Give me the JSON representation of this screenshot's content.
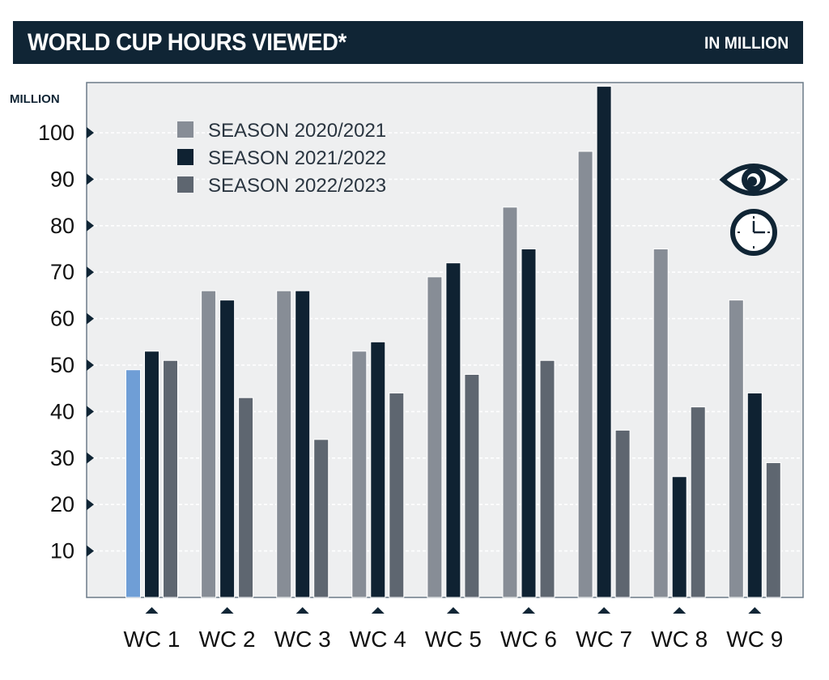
{
  "header": {
    "title": "WORLD CUP HOURS VIEWED*",
    "unit_label": "IN MILLION"
  },
  "chart_data": {
    "type": "bar",
    "title": "WORLD CUP HOURS VIEWED*",
    "ylabel": "MILLION",
    "xlabel": "",
    "ylim": [
      0,
      110
    ],
    "yticks": [
      10,
      20,
      30,
      40,
      50,
      60,
      70,
      80,
      90,
      100
    ],
    "grid": true,
    "legend_position": "top-left",
    "categories": [
      "WC 1",
      "WC 2",
      "WC 3",
      "WC 4",
      "WC 5",
      "WC 6",
      "WC 7",
      "WC 8",
      "WC 9"
    ],
    "series": [
      {
        "name": "SEASON 2020/2021",
        "color": "#878d96",
        "values": [
          49,
          66,
          66,
          53,
          69,
          84,
          96,
          75,
          64
        ]
      },
      {
        "name": "SEASON 2021/2022",
        "color": "#0f2232",
        "values": [
          53,
          64,
          66,
          55,
          72,
          75,
          110,
          26,
          44
        ]
      },
      {
        "name": "SEASON 2022/2023",
        "color": "#5e6670",
        "values": [
          51,
          43,
          34,
          44,
          48,
          51,
          36,
          41,
          29
        ]
      }
    ],
    "highlight": {
      "category_index": 0,
      "series_index": 0,
      "color": "#6f9ed6"
    },
    "icons": [
      "eye-icon",
      "clock-icon"
    ]
  }
}
